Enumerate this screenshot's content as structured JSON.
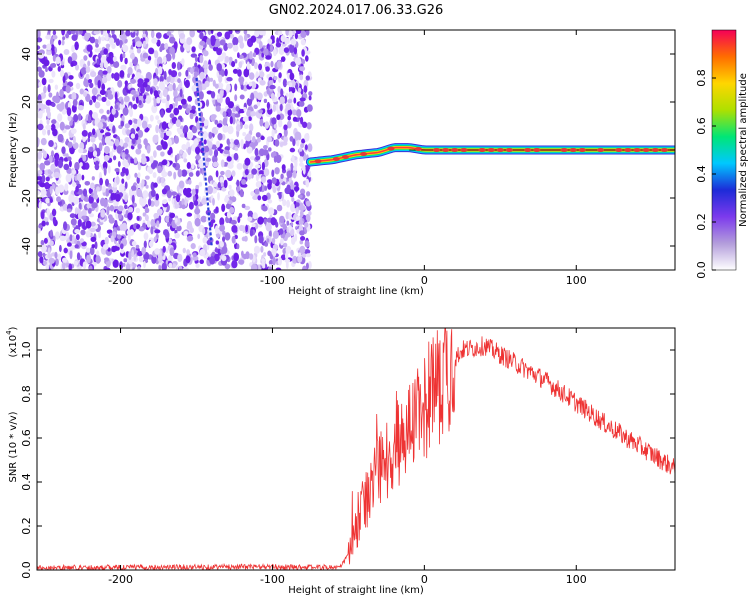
{
  "title": "GN02.2024.017.06.33.G26",
  "chart_data": [
    {
      "type": "heatmap",
      "xlabel": "Height of straight line (km)",
      "ylabel": "Frequency (Hz)",
      "xlim": [
        -255,
        165
      ],
      "ylim": [
        -50,
        50
      ],
      "xticks": [
        -200,
        -100,
        0,
        100
      ],
      "xtick_labels": [
        "-200",
        "-100",
        "0",
        "100"
      ],
      "yticks": [
        40,
        20,
        0,
        -20,
        -40
      ],
      "ytick_labels": [
        "40",
        "20",
        "0",
        "-20",
        "-40"
      ],
      "noise_region_x": [
        -255,
        -75
      ],
      "ridge": [
        {
          "x": -75,
          "y": -5
        },
        {
          "x": -60,
          "y": -4
        },
        {
          "x": -45,
          "y": -2
        },
        {
          "x": -30,
          "y": -1
        },
        {
          "x": -20,
          "y": 1
        },
        {
          "x": -10,
          "y": 1
        },
        {
          "x": 0,
          "y": 0
        },
        {
          "x": 165,
          "y": 0
        }
      ],
      "diagonal_streak": [
        {
          "x": -150,
          "y": 30
        },
        {
          "x": -140,
          "y": -40
        }
      ],
      "colorbar": {
        "label": "Normalized spectral amplitude",
        "ticks": [
          "0.0",
          "0.2",
          "0.4",
          "0.6",
          "0.8"
        ],
        "tick_values": [
          0,
          0.2,
          0.4,
          0.6,
          0.8
        ],
        "range": [
          0,
          1
        ],
        "colors": [
          "#ffffff",
          "#b39ddb",
          "#7c3aed",
          "#1d2bd8",
          "#00c8ff",
          "#00e676",
          "#aee000",
          "#ffd600",
          "#ff6d00",
          "#f50057"
        ]
      }
    },
    {
      "type": "line",
      "xlabel": "Height of straight line (km)",
      "ylabel": "SNR (10 * v/v)",
      "scale_label": "(x10",
      "scale_exp": "4",
      "xlim": [
        -255,
        165
      ],
      "ylim": [
        0,
        1.1
      ],
      "xticks": [
        -200,
        -100,
        0,
        100
      ],
      "xtick_labels": [
        "-200",
        "-100",
        "0",
        "100"
      ],
      "yticks": [
        0,
        0.2,
        0.4,
        0.6,
        0.8,
        1.0
      ],
      "ytick_labels": [
        "0.0",
        "0.2",
        "0.4",
        "0.6",
        "0.8",
        "1.0"
      ],
      "color": "#ee3333",
      "envelope": [
        {
          "x": -255,
          "y": 0.01
        },
        {
          "x": -120,
          "y": 0.015
        },
        {
          "x": -55,
          "y": 0.012
        },
        {
          "x": -48,
          "y": 0.1
        },
        {
          "x": -40,
          "y": 0.3
        },
        {
          "x": -30,
          "y": 0.45
        },
        {
          "x": -15,
          "y": 0.6
        },
        {
          "x": 0,
          "y": 0.75
        },
        {
          "x": 15,
          "y": 0.92
        },
        {
          "x": 25,
          "y": 1.0
        },
        {
          "x": 40,
          "y": 1.02
        },
        {
          "x": 60,
          "y": 0.94
        },
        {
          "x": 80,
          "y": 0.86
        },
        {
          "x": 100,
          "y": 0.76
        },
        {
          "x": 120,
          "y": 0.66
        },
        {
          "x": 140,
          "y": 0.57
        },
        {
          "x": 165,
          "y": 0.46
        }
      ]
    }
  ]
}
